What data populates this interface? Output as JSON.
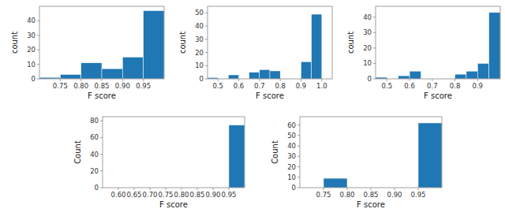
{
  "chart_data": [
    {
      "type": "histogram",
      "xlabel": "F score",
      "ylabel": "count",
      "color": "#1f77b4",
      "bins": [
        0.7,
        0.75,
        0.8,
        0.85,
        0.9,
        0.95,
        1.0
      ],
      "values": [
        1,
        3,
        11,
        7,
        15,
        47
      ],
      "xlim": [
        0.7,
        1.0
      ],
      "xticks": [
        0.75,
        {
          "value": 0.8,
          "label": "0.80"
        },
        0.85,
        {
          "value": 0.9,
          "label": "0.90"
        },
        0.95
      ],
      "ylim": [
        0,
        50
      ],
      "yticks": [
        0,
        10,
        20,
        30,
        40
      ]
    },
    {
      "type": "histogram",
      "xlabel": "F score",
      "ylabel": "count",
      "color": "#1f77b4",
      "bins": [
        0.45,
        0.5,
        0.55,
        0.6,
        0.65,
        0.7,
        0.75,
        0.8,
        0.85,
        0.9,
        0.95,
        1.0
      ],
      "values": [
        1,
        0,
        3,
        0,
        5,
        7,
        6,
        0,
        0,
        13,
        49
      ],
      "xlim": [
        0.45,
        1.05
      ],
      "xticks": [
        0.5,
        0.6,
        0.7,
        0.8,
        0.9,
        {
          "value": 1.0,
          "label": "1.0"
        }
      ],
      "ylim": [
        0,
        55
      ],
      "yticks": [
        0,
        10,
        20,
        30,
        40,
        50
      ]
    },
    {
      "type": "histogram",
      "xlabel": "F score",
      "ylabel": "count",
      "color": "#1f77b4",
      "bins": [
        0.45,
        0.5,
        0.55,
        0.6,
        0.65,
        0.7,
        0.75,
        0.8,
        0.85,
        0.9,
        0.95,
        1.0
      ],
      "values": [
        1,
        0,
        2,
        5,
        0,
        0,
        0,
        3,
        5,
        10,
        43
      ],
      "xlim": [
        0.45,
        1.0
      ],
      "xticks": [
        0.5,
        0.6,
        0.7,
        0.8,
        0.9
      ],
      "ylim": [
        0,
        47
      ],
      "yticks": [
        0,
        10,
        20,
        30,
        40
      ]
    },
    {
      "type": "histogram",
      "xlabel": "F score",
      "ylabel": "Count",
      "color": "#1f77b4",
      "bins": [
        0.55,
        0.6,
        0.65,
        0.7,
        0.75,
        0.8,
        0.85,
        0.9,
        0.95,
        1.0
      ],
      "values": [
        0,
        0,
        0,
        0,
        0,
        0,
        0,
        0,
        75
      ],
      "xlim": [
        0.55,
        1.0
      ],
      "xticks": [
        {
          "value": 0.6,
          "label": "0.60"
        },
        0.65,
        {
          "value": 0.7,
          "label": "0.70"
        },
        0.75,
        {
          "value": 0.8,
          "label": "0.80"
        },
        0.85,
        {
          "value": 0.9,
          "label": "0.90"
        },
        0.95
      ],
      "ylim": [
        0,
        85
      ],
      "yticks": [
        0,
        20,
        40,
        60,
        80
      ]
    },
    {
      "type": "histogram",
      "xlabel": "F score",
      "ylabel": "Count",
      "color": "#1f77b4",
      "bins": [
        0.7,
        0.75,
        0.8,
        0.85,
        0.9,
        0.95,
        1.0
      ],
      "values": [
        0,
        9,
        0,
        0,
        0,
        62
      ],
      "xlim": [
        0.7,
        1.0
      ],
      "xticks": [
        0.75,
        {
          "value": 0.8,
          "label": "0.80"
        },
        0.85,
        {
          "value": 0.9,
          "label": "0.90"
        },
        0.95
      ],
      "ylim": [
        0,
        68
      ],
      "yticks": [
        0,
        10,
        20,
        30,
        40,
        50,
        60
      ]
    }
  ]
}
